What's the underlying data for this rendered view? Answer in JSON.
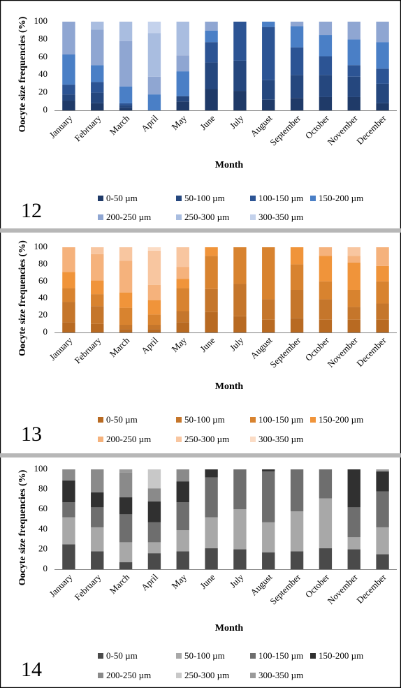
{
  "chart_data": [
    {
      "type": "bar",
      "panel_number": "12",
      "xlabel": "Month",
      "ylabel": "Oocyte size frequencies (%)",
      "ylim": [
        0,
        100
      ],
      "yticks": [
        "0",
        "20",
        "40",
        "60",
        "80",
        "100"
      ],
      "grid": false,
      "legend_position": "bottom",
      "categories": [
        "January",
        "February",
        "March",
        "April",
        "May",
        "June",
        "July",
        "August",
        "September",
        "October",
        "November",
        "December"
      ],
      "series": [
        {
          "name": "0-50 µm",
          "color": "#1f3a68",
          "values": [
            11,
            8,
            3,
            0,
            10,
            24,
            22,
            12,
            14,
            15,
            15,
            8
          ]
        },
        {
          "name": "50-100 µm",
          "color": "#25477e",
          "values": [
            7,
            12,
            3,
            0,
            6,
            30,
            34,
            22,
            26,
            25,
            23,
            22
          ]
        },
        {
          "name": "100-150 µm",
          "color": "#2c5494",
          "values": [
            11,
            12,
            2,
            0,
            0,
            23,
            44,
            60,
            31,
            21,
            13,
            17
          ]
        },
        {
          "name": "150-200 µm",
          "color": "#4a7fc6",
          "values": [
            34,
            19,
            19,
            18,
            28,
            13,
            0,
            6,
            24,
            24,
            29,
            30
          ]
        },
        {
          "name": "200-250 µm",
          "color": "#8fa6d2",
          "values": [
            37,
            40,
            51,
            20,
            18,
            10,
            0,
            0,
            5,
            15,
            20,
            23
          ]
        },
        {
          "name": "250-300 µm",
          "color": "#a9bde0",
          "values": [
            0,
            9,
            22,
            49,
            38,
            0,
            0,
            0,
            0,
            0,
            0,
            0
          ]
        },
        {
          "name": "300-350 µm",
          "color": "#c4d2ec",
          "values": [
            0,
            0,
            0,
            13,
            0,
            0,
            0,
            0,
            0,
            0,
            0,
            0
          ]
        }
      ]
    },
    {
      "type": "bar",
      "panel_number": "13",
      "xlabel": "Month",
      "ylabel": "Oocyte size frequencies (%)",
      "ylim": [
        0,
        100
      ],
      "yticks": [
        "0",
        "20",
        "40",
        "60",
        "80",
        "100"
      ],
      "grid": false,
      "legend_position": "bottom",
      "categories": [
        "January",
        "February",
        "March",
        "April",
        "May",
        "June",
        "July",
        "August",
        "September",
        "October",
        "November",
        "December"
      ],
      "series": [
        {
          "name": "0-50 µm",
          "color": "#b86a22",
          "values": [
            12,
            10,
            4,
            4,
            12,
            24,
            19,
            15,
            17,
            15,
            15,
            15
          ]
        },
        {
          "name": "50-100 µm",
          "color": "#c5762b",
          "values": [
            24,
            21,
            5,
            5,
            13,
            27,
            38,
            24,
            33,
            24,
            15,
            19
          ]
        },
        {
          "name": "100-150 µm",
          "color": "#d8832f",
          "values": [
            16,
            14,
            20,
            12,
            27,
            39,
            43,
            61,
            30,
            21,
            20,
            26
          ]
        },
        {
          "name": "150-200 µm",
          "color": "#f0943a",
          "values": [
            19,
            16,
            18,
            17,
            11,
            10,
            0,
            0,
            20,
            30,
            32,
            18
          ]
        },
        {
          "name": "200-250 µm",
          "color": "#f5b27c",
          "values": [
            29,
            31,
            37,
            18,
            14,
            0,
            0,
            0,
            0,
            10,
            8,
            22
          ]
        },
        {
          "name": "250-300 µm",
          "color": "#f8c6a0",
          "values": [
            0,
            8,
            16,
            40,
            23,
            0,
            0,
            0,
            0,
            0,
            10,
            0
          ]
        },
        {
          "name": "300-350 µm",
          "color": "#fbdcc5",
          "values": [
            0,
            0,
            0,
            4,
            0,
            0,
            0,
            0,
            0,
            0,
            0,
            0
          ]
        }
      ]
    },
    {
      "type": "bar",
      "panel_number": "14",
      "xlabel": "Month",
      "ylabel": "Oocyte size frequencies (%)",
      "ylim": [
        0,
        100
      ],
      "yticks": [
        "0",
        "20",
        "40",
        "60",
        "80",
        "100"
      ],
      "grid": false,
      "legend_position": "bottom",
      "categories": [
        "January",
        "February",
        "March",
        "April",
        "May",
        "June",
        "July",
        "August",
        "September",
        "October",
        "November",
        "December"
      ],
      "series": [
        {
          "name": "0-50 µm",
          "color": "#4a4a4a",
          "values": [
            25,
            18,
            7,
            16,
            18,
            21,
            20,
            17,
            18,
            21,
            20,
            15
          ]
        },
        {
          "name": "50-100 µm",
          "color": "#a8a8a8",
          "values": [
            27,
            24,
            20,
            11,
            21,
            31,
            40,
            30,
            40,
            50,
            12,
            27
          ]
        },
        {
          "name": "100-150 µm",
          "color": "#6e6e6e",
          "values": [
            15,
            20,
            28,
            20,
            28,
            40,
            40,
            51,
            42,
            29,
            30,
            36
          ]
        },
        {
          "name": "150-200 µm",
          "color": "#303030",
          "values": [
            22,
            15,
            17,
            21,
            21,
            8,
            0,
            2,
            0,
            0,
            38,
            20
          ]
        },
        {
          "name": "200-250 µm",
          "color": "#8a8a8a",
          "values": [
            11,
            23,
            25,
            13,
            12,
            0,
            0,
            0,
            0,
            0,
            0,
            0
          ]
        },
        {
          "name": "250-300 µm",
          "color": "#c8c8c8",
          "values": [
            0,
            0,
            0,
            19,
            0,
            0,
            0,
            0,
            0,
            0,
            0,
            0
          ]
        },
        {
          "name": "300-350 µm",
          "color": "#9a9a9a",
          "values": [
            0,
            0,
            3,
            0,
            0,
            0,
            0,
            0,
            0,
            0,
            0,
            2
          ]
        }
      ]
    }
  ]
}
